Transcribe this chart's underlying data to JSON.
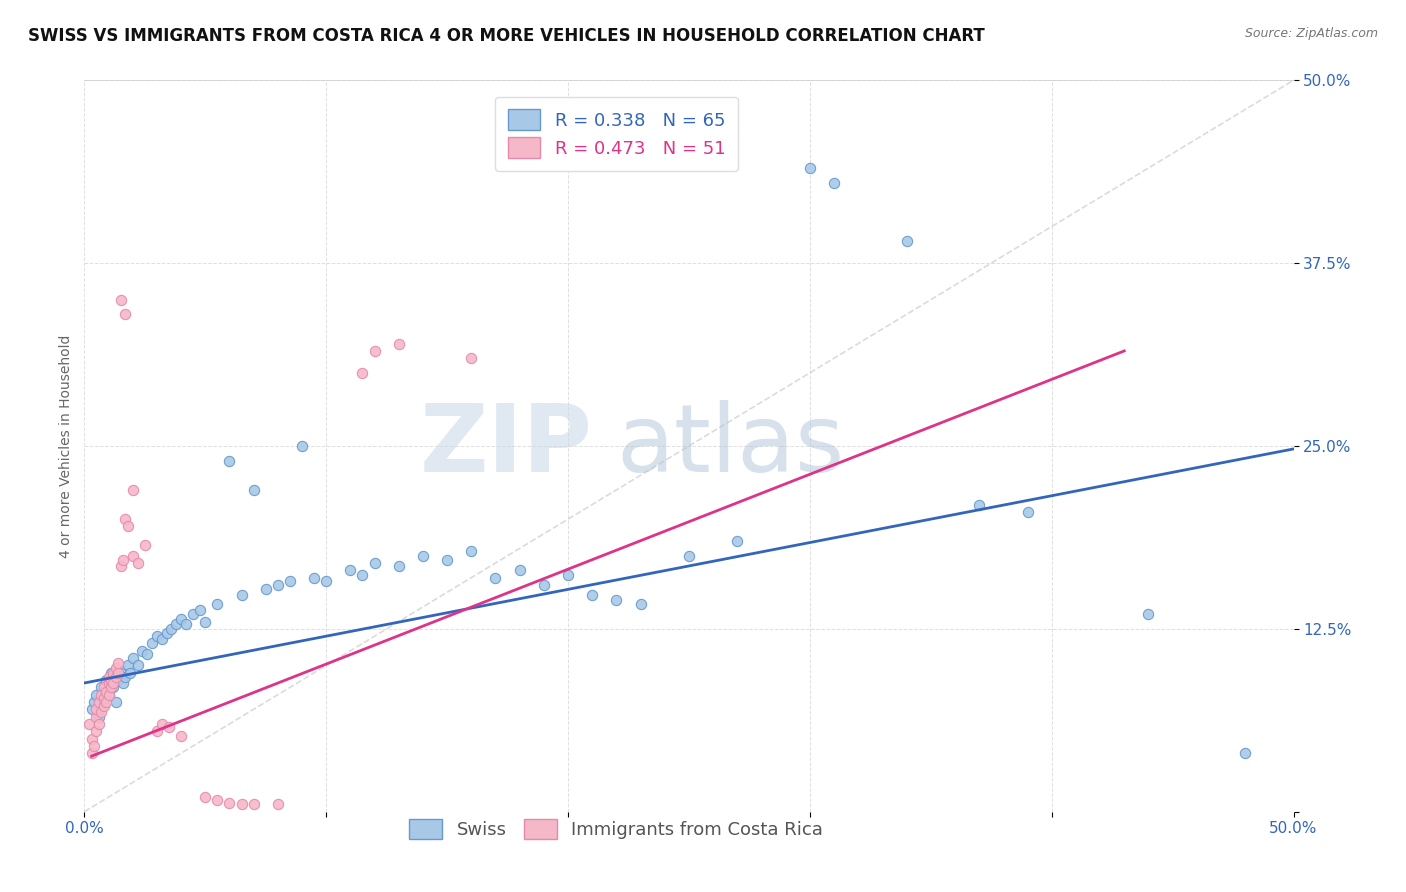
{
  "title": "SWISS VS IMMIGRANTS FROM COSTA RICA 4 OR MORE VEHICLES IN HOUSEHOLD CORRELATION CHART",
  "source": "Source: ZipAtlas.com",
  "ylabel": "4 or more Vehicles in Household",
  "xlim": [
    0.0,
    0.5
  ],
  "ylim": [
    0.0,
    0.5
  ],
  "xticks": [
    0.0,
    0.1,
    0.2,
    0.3,
    0.4,
    0.5
  ],
  "yticks": [
    0.0,
    0.125,
    0.25,
    0.375,
    0.5
  ],
  "xticklabels": [
    "0.0%",
    "",
    "",
    "",
    "",
    "50.0%"
  ],
  "yticklabels": [
    "",
    "12.5%",
    "25.0%",
    "37.5%",
    "50.0%"
  ],
  "blue_R": 0.338,
  "blue_N": 65,
  "pink_R": 0.473,
  "pink_N": 51,
  "blue_color": "#a8c8e8",
  "pink_color": "#f4b8c8",
  "blue_marker_edge": "#6699cc",
  "pink_marker_edge": "#e888aa",
  "blue_line_color": "#3366bb",
  "pink_line_color": "#dd3388",
  "diagonal_color": "#cccccc",
  "blue_scatter": [
    [
      0.003,
      0.07
    ],
    [
      0.004,
      0.075
    ],
    [
      0.005,
      0.08
    ],
    [
      0.006,
      0.065
    ],
    [
      0.007,
      0.085
    ],
    [
      0.008,
      0.075
    ],
    [
      0.009,
      0.09
    ],
    [
      0.01,
      0.08
    ],
    [
      0.011,
      0.095
    ],
    [
      0.012,
      0.085
    ],
    [
      0.013,
      0.075
    ],
    [
      0.014,
      0.09
    ],
    [
      0.015,
      0.095
    ],
    [
      0.016,
      0.088
    ],
    [
      0.017,
      0.092
    ],
    [
      0.018,
      0.1
    ],
    [
      0.019,
      0.095
    ],
    [
      0.02,
      0.105
    ],
    [
      0.022,
      0.1
    ],
    [
      0.024,
      0.11
    ],
    [
      0.026,
      0.108
    ],
    [
      0.028,
      0.115
    ],
    [
      0.03,
      0.12
    ],
    [
      0.032,
      0.118
    ],
    [
      0.034,
      0.122
    ],
    [
      0.036,
      0.125
    ],
    [
      0.038,
      0.128
    ],
    [
      0.04,
      0.132
    ],
    [
      0.042,
      0.128
    ],
    [
      0.045,
      0.135
    ],
    [
      0.048,
      0.138
    ],
    [
      0.05,
      0.13
    ],
    [
      0.055,
      0.142
    ],
    [
      0.06,
      0.24
    ],
    [
      0.065,
      0.148
    ],
    [
      0.07,
      0.22
    ],
    [
      0.075,
      0.152
    ],
    [
      0.08,
      0.155
    ],
    [
      0.085,
      0.158
    ],
    [
      0.09,
      0.25
    ],
    [
      0.095,
      0.16
    ],
    [
      0.1,
      0.158
    ],
    [
      0.11,
      0.165
    ],
    [
      0.115,
      0.162
    ],
    [
      0.12,
      0.17
    ],
    [
      0.13,
      0.168
    ],
    [
      0.14,
      0.175
    ],
    [
      0.15,
      0.172
    ],
    [
      0.16,
      0.178
    ],
    [
      0.17,
      0.16
    ],
    [
      0.18,
      0.165
    ],
    [
      0.19,
      0.155
    ],
    [
      0.2,
      0.162
    ],
    [
      0.21,
      0.148
    ],
    [
      0.22,
      0.145
    ],
    [
      0.23,
      0.142
    ],
    [
      0.25,
      0.175
    ],
    [
      0.27,
      0.185
    ],
    [
      0.3,
      0.44
    ],
    [
      0.31,
      0.43
    ],
    [
      0.34,
      0.39
    ],
    [
      0.37,
      0.21
    ],
    [
      0.39,
      0.205
    ],
    [
      0.44,
      0.135
    ],
    [
      0.48,
      0.04
    ]
  ],
  "pink_scatter": [
    [
      0.002,
      0.06
    ],
    [
      0.003,
      0.04
    ],
    [
      0.003,
      0.05
    ],
    [
      0.004,
      0.045
    ],
    [
      0.005,
      0.055
    ],
    [
      0.005,
      0.065
    ],
    [
      0.005,
      0.07
    ],
    [
      0.006,
      0.06
    ],
    [
      0.006,
      0.075
    ],
    [
      0.007,
      0.068
    ],
    [
      0.007,
      0.08
    ],
    [
      0.008,
      0.072
    ],
    [
      0.008,
      0.078
    ],
    [
      0.008,
      0.085
    ],
    [
      0.009,
      0.075
    ],
    [
      0.009,
      0.082
    ],
    [
      0.01,
      0.08
    ],
    [
      0.01,
      0.088
    ],
    [
      0.01,
      0.092
    ],
    [
      0.011,
      0.085
    ],
    [
      0.011,
      0.09
    ],
    [
      0.012,
      0.088
    ],
    [
      0.012,
      0.095
    ],
    [
      0.013,
      0.092
    ],
    [
      0.013,
      0.098
    ],
    [
      0.014,
      0.095
    ],
    [
      0.014,
      0.102
    ],
    [
      0.015,
      0.168
    ],
    [
      0.016,
      0.172
    ],
    [
      0.017,
      0.2
    ],
    [
      0.018,
      0.195
    ],
    [
      0.02,
      0.175
    ],
    [
      0.022,
      0.17
    ],
    [
      0.025,
      0.182
    ],
    [
      0.015,
      0.35
    ],
    [
      0.017,
      0.34
    ],
    [
      0.02,
      0.22
    ],
    [
      0.03,
      0.055
    ],
    [
      0.032,
      0.06
    ],
    [
      0.035,
      0.058
    ],
    [
      0.04,
      0.052
    ],
    [
      0.05,
      0.01
    ],
    [
      0.055,
      0.008
    ],
    [
      0.06,
      0.006
    ],
    [
      0.065,
      0.005
    ],
    [
      0.07,
      0.005
    ],
    [
      0.08,
      0.005
    ],
    [
      0.115,
      0.3
    ],
    [
      0.12,
      0.315
    ],
    [
      0.13,
      0.32
    ],
    [
      0.16,
      0.31
    ]
  ],
  "blue_trend_x": [
    0.0,
    0.5
  ],
  "blue_trend_y": [
    0.088,
    0.248
  ],
  "pink_trend_x": [
    0.003,
    0.43
  ],
  "pink_trend_y": [
    0.038,
    0.315
  ],
  "background_color": "#ffffff",
  "grid_color": "#e0e0e0",
  "title_fontsize": 12,
  "label_fontsize": 10,
  "tick_fontsize": 11,
  "legend_fontsize": 13,
  "watermark_zip_color": "#c8d8e8",
  "watermark_atlas_color": "#b0c4d8"
}
